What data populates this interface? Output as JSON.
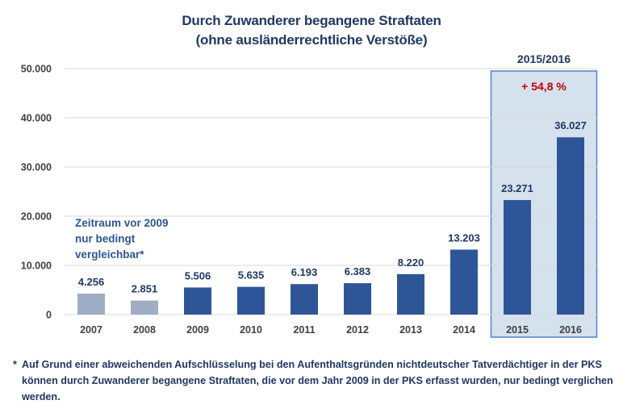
{
  "chart_data": {
    "type": "bar",
    "title": "Durch Zuwanderer begangene Straftaten",
    "subtitle": "(ohne ausländerrechtliche Verstöße)",
    "xlabel": "",
    "ylabel": "",
    "ylim": [
      0,
      50000
    ],
    "yticks": [
      0,
      10000,
      20000,
      30000,
      40000,
      50000
    ],
    "ytick_labels": [
      "0",
      "10.000",
      "20.000",
      "30.000",
      "40.000",
      "50.000"
    ],
    "grid": true,
    "categories": [
      "2007",
      "2008",
      "2009",
      "2010",
      "2011",
      "2012",
      "2013",
      "2014",
      "2015",
      "2016"
    ],
    "values": [
      4256,
      2851,
      5506,
      5635,
      6193,
      6383,
      8220,
      13203,
      23271,
      36027
    ],
    "value_labels": [
      "4.256",
      "2.851",
      "5.506",
      "5.635",
      "6.193",
      "6.383",
      "8.220",
      "13.203",
      "23.271",
      "36.027"
    ],
    "limited_comparability": [
      true,
      true,
      false,
      false,
      false,
      false,
      false,
      false,
      false,
      false
    ],
    "annotations": [
      {
        "text_lines": [
          "Zeitraum vor 2009",
          "nur bedingt",
          "vergleichbar*"
        ],
        "position": "upper-left, above 2007-2008"
      },
      {
        "highlight_range": [
          "2015",
          "2016"
        ],
        "label": "2015/2016",
        "change_text": "+ 54,8 %"
      }
    ],
    "colors": {
      "bar": "#2e5597",
      "bar_limited": "#9fadc5",
      "highlight_fill": "#d6e1ee",
      "highlight_border": "#4f86c6",
      "change_text": "#c00000",
      "text": "#1f3864",
      "axis_text": "#404040",
      "grid": "#d9d9d9"
    }
  },
  "footnote": {
    "marker": "*",
    "text": "Auf Grund einer abweichenden Aufschlüsselung bei den Aufenthaltsgründen nichtdeutscher Tatverdächtiger in der PKS können durch Zuwanderer begangene Straftaten, die vor dem Jahr 2009 in der PKS erfasst wurden, nur bedingt verglichen werden."
  }
}
